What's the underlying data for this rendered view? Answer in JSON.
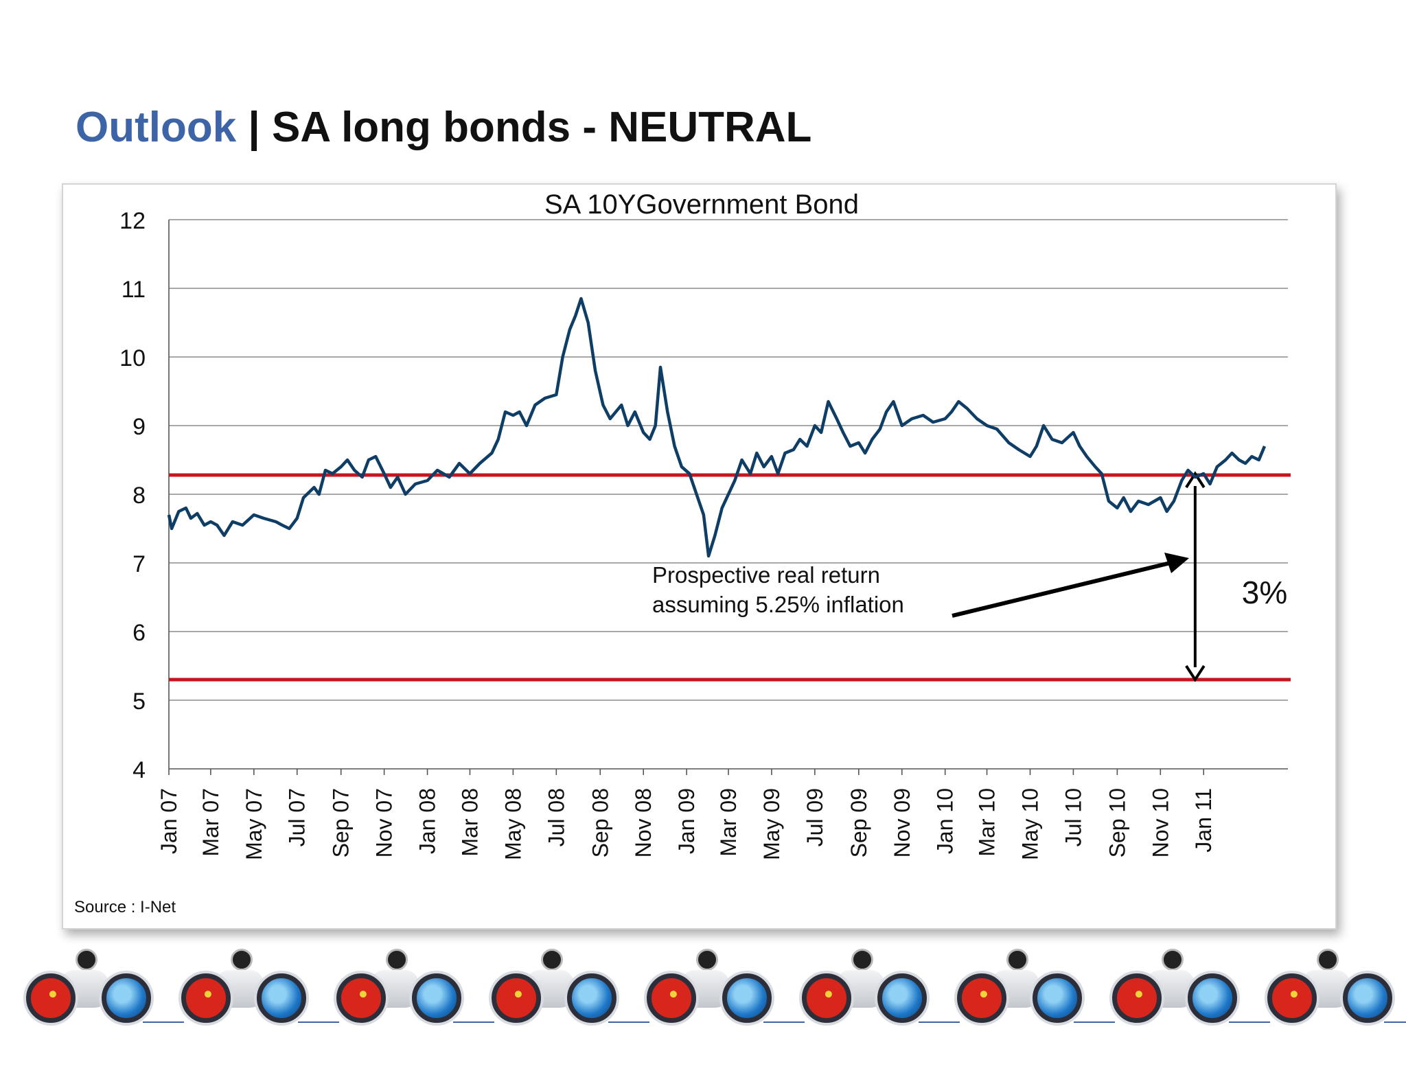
{
  "header": {
    "section": "Outlook",
    "separator": " | ",
    "title": "SA long bonds - NEUTRAL"
  },
  "source_note": "Source : I-Net",
  "colors": {
    "accent": "#3d64a6",
    "series": "#0e3d66",
    "reference_line": "#c8141e",
    "grid": "#8c8c8c"
  },
  "annotation": {
    "line1": "Prospective real return",
    "line2": "assuming 5.25% inflation",
    "spread_label": "3%"
  },
  "decorative_strip": {
    "icon": "binoculars-icon",
    "count": 9
  },
  "chart_data": {
    "type": "line",
    "title": "SA 10YGovernment Bond",
    "xlabel": "",
    "ylabel": "",
    "ylim": [
      4,
      12
    ],
    "yticks": [
      4,
      5,
      6,
      7,
      8,
      9,
      10,
      11,
      12
    ],
    "grid": true,
    "xlim": [
      "2007-01-01",
      "2011-04-30"
    ],
    "x_tick_labels": [
      "Jan 07",
      "Mar 07",
      "May 07",
      "Jul 07",
      "Sep 07",
      "Nov 07",
      "Jan 08",
      "Mar 08",
      "May 08",
      "Jul 08",
      "Sep 08",
      "Nov 08",
      "Jan 09",
      "Mar 09",
      "May 09",
      "Jul 09",
      "Sep 09",
      "Nov 09",
      "Jan 10",
      "Mar 10",
      "May 10",
      "Jul 10",
      "Sep 10",
      "Nov 10",
      "Jan 11"
    ],
    "x_tick_dates": [
      "2007-01-01",
      "2007-03-01",
      "2007-05-01",
      "2007-07-01",
      "2007-09-01",
      "2007-11-01",
      "2008-01-01",
      "2008-03-01",
      "2008-05-01",
      "2008-07-01",
      "2008-09-01",
      "2008-11-01",
      "2009-01-01",
      "2009-03-01",
      "2009-05-01",
      "2009-07-01",
      "2009-09-01",
      "2009-11-01",
      "2010-01-01",
      "2010-03-01",
      "2010-05-01",
      "2010-07-01",
      "2010-09-01",
      "2010-11-01",
      "2011-01-01"
    ],
    "reference_lines": [
      8.28,
      5.3
    ],
    "spread_arrow": {
      "date": "2010-12-20",
      "from": 5.3,
      "to": 8.3
    },
    "series": [
      {
        "points": [
          [
            "2007-01-01",
            7.7
          ],
          [
            "2007-01-05",
            7.5
          ],
          [
            "2007-01-15",
            7.75
          ],
          [
            "2007-01-25",
            7.8
          ],
          [
            "2007-02-01",
            7.65
          ],
          [
            "2007-02-10",
            7.72
          ],
          [
            "2007-02-20",
            7.55
          ],
          [
            "2007-03-01",
            7.6
          ],
          [
            "2007-03-10",
            7.55
          ],
          [
            "2007-03-20",
            7.4
          ],
          [
            "2007-04-01",
            7.6
          ],
          [
            "2007-04-15",
            7.55
          ],
          [
            "2007-05-01",
            7.7
          ],
          [
            "2007-05-15",
            7.65
          ],
          [
            "2007-06-01",
            7.6
          ],
          [
            "2007-06-10",
            7.55
          ],
          [
            "2007-06-20",
            7.5
          ],
          [
            "2007-07-01",
            7.65
          ],
          [
            "2007-07-10",
            7.95
          ],
          [
            "2007-07-25",
            8.1
          ],
          [
            "2007-08-01",
            8.0
          ],
          [
            "2007-08-10",
            8.35
          ],
          [
            "2007-08-20",
            8.3
          ],
          [
            "2007-09-01",
            8.4
          ],
          [
            "2007-09-10",
            8.5
          ],
          [
            "2007-09-20",
            8.35
          ],
          [
            "2007-10-01",
            8.25
          ],
          [
            "2007-10-10",
            8.5
          ],
          [
            "2007-10-20",
            8.55
          ],
          [
            "2007-11-01",
            8.3
          ],
          [
            "2007-11-10",
            8.1
          ],
          [
            "2007-11-20",
            8.25
          ],
          [
            "2007-12-01",
            8.0
          ],
          [
            "2007-12-15",
            8.15
          ],
          [
            "2008-01-01",
            8.2
          ],
          [
            "2008-01-15",
            8.35
          ],
          [
            "2008-02-01",
            8.25
          ],
          [
            "2008-02-15",
            8.45
          ],
          [
            "2008-03-01",
            8.3
          ],
          [
            "2008-03-15",
            8.45
          ],
          [
            "2008-04-01",
            8.6
          ],
          [
            "2008-04-10",
            8.8
          ],
          [
            "2008-04-20",
            9.2
          ],
          [
            "2008-05-01",
            9.15
          ],
          [
            "2008-05-10",
            9.2
          ],
          [
            "2008-05-20",
            9.0
          ],
          [
            "2008-06-01",
            9.3
          ],
          [
            "2008-06-15",
            9.4
          ],
          [
            "2008-07-01",
            9.45
          ],
          [
            "2008-07-10",
            10.0
          ],
          [
            "2008-07-20",
            10.4
          ],
          [
            "2008-07-28",
            10.6
          ],
          [
            "2008-08-05",
            10.85
          ],
          [
            "2008-08-15",
            10.5
          ],
          [
            "2008-08-25",
            9.8
          ],
          [
            "2008-09-05",
            9.3
          ],
          [
            "2008-09-15",
            9.1
          ],
          [
            "2008-10-01",
            9.3
          ],
          [
            "2008-10-10",
            9.0
          ],
          [
            "2008-10-20",
            9.2
          ],
          [
            "2008-11-01",
            8.9
          ],
          [
            "2008-11-10",
            8.8
          ],
          [
            "2008-11-18",
            9.0
          ],
          [
            "2008-11-25",
            9.85
          ],
          [
            "2008-12-05",
            9.2
          ],
          [
            "2008-12-15",
            8.7
          ],
          [
            "2008-12-25",
            8.4
          ],
          [
            "2009-01-05",
            8.3
          ],
          [
            "2009-01-15",
            8.0
          ],
          [
            "2009-01-25",
            7.7
          ],
          [
            "2009-02-01",
            7.1
          ],
          [
            "2009-02-10",
            7.4
          ],
          [
            "2009-02-20",
            7.8
          ],
          [
            "2009-03-01",
            8.0
          ],
          [
            "2009-03-10",
            8.2
          ],
          [
            "2009-03-20",
            8.5
          ],
          [
            "2009-04-01",
            8.3
          ],
          [
            "2009-04-10",
            8.6
          ],
          [
            "2009-04-20",
            8.4
          ],
          [
            "2009-05-01",
            8.55
          ],
          [
            "2009-05-10",
            8.3
          ],
          [
            "2009-05-20",
            8.6
          ],
          [
            "2009-06-01",
            8.65
          ],
          [
            "2009-06-10",
            8.8
          ],
          [
            "2009-06-20",
            8.7
          ],
          [
            "2009-07-01",
            9.0
          ],
          [
            "2009-07-10",
            8.9
          ],
          [
            "2009-07-20",
            9.35
          ],
          [
            "2009-08-01",
            9.1
          ],
          [
            "2009-08-10",
            8.9
          ],
          [
            "2009-08-20",
            8.7
          ],
          [
            "2009-09-01",
            8.75
          ],
          [
            "2009-09-10",
            8.6
          ],
          [
            "2009-09-20",
            8.8
          ],
          [
            "2009-10-01",
            8.95
          ],
          [
            "2009-10-10",
            9.2
          ],
          [
            "2009-10-20",
            9.35
          ],
          [
            "2009-11-01",
            9.0
          ],
          [
            "2009-11-15",
            9.1
          ],
          [
            "2009-12-01",
            9.15
          ],
          [
            "2009-12-15",
            9.05
          ],
          [
            "2010-01-01",
            9.1
          ],
          [
            "2010-01-10",
            9.2
          ],
          [
            "2010-01-20",
            9.35
          ],
          [
            "2010-02-01",
            9.25
          ],
          [
            "2010-02-15",
            9.1
          ],
          [
            "2010-03-01",
            9.0
          ],
          [
            "2010-03-15",
            8.95
          ],
          [
            "2010-04-01",
            8.75
          ],
          [
            "2010-04-15",
            8.65
          ],
          [
            "2010-05-01",
            8.55
          ],
          [
            "2010-05-10",
            8.7
          ],
          [
            "2010-05-20",
            9.0
          ],
          [
            "2010-06-01",
            8.8
          ],
          [
            "2010-06-15",
            8.75
          ],
          [
            "2010-07-01",
            8.9
          ],
          [
            "2010-07-10",
            8.7
          ],
          [
            "2010-07-20",
            8.55
          ],
          [
            "2010-08-01",
            8.4
          ],
          [
            "2010-08-10",
            8.3
          ],
          [
            "2010-08-20",
            7.9
          ],
          [
            "2010-09-01",
            7.8
          ],
          [
            "2010-09-10",
            7.95
          ],
          [
            "2010-09-20",
            7.75
          ],
          [
            "2010-10-01",
            7.9
          ],
          [
            "2010-10-15",
            7.85
          ],
          [
            "2010-11-01",
            7.95
          ],
          [
            "2010-11-10",
            7.75
          ],
          [
            "2010-11-20",
            7.9
          ],
          [
            "2010-12-01",
            8.2
          ],
          [
            "2010-12-10",
            8.35
          ],
          [
            "2010-12-20",
            8.25
          ],
          [
            "2011-01-01",
            8.3
          ],
          [
            "2011-01-10",
            8.15
          ],
          [
            "2011-01-20",
            8.4
          ],
          [
            "2011-02-01",
            8.5
          ],
          [
            "2011-02-10",
            8.6
          ],
          [
            "2011-02-20",
            8.5
          ],
          [
            "2011-03-01",
            8.45
          ],
          [
            "2011-03-10",
            8.55
          ],
          [
            "2011-03-20",
            8.5
          ],
          [
            "2011-03-28",
            8.7
          ]
        ]
      }
    ]
  }
}
